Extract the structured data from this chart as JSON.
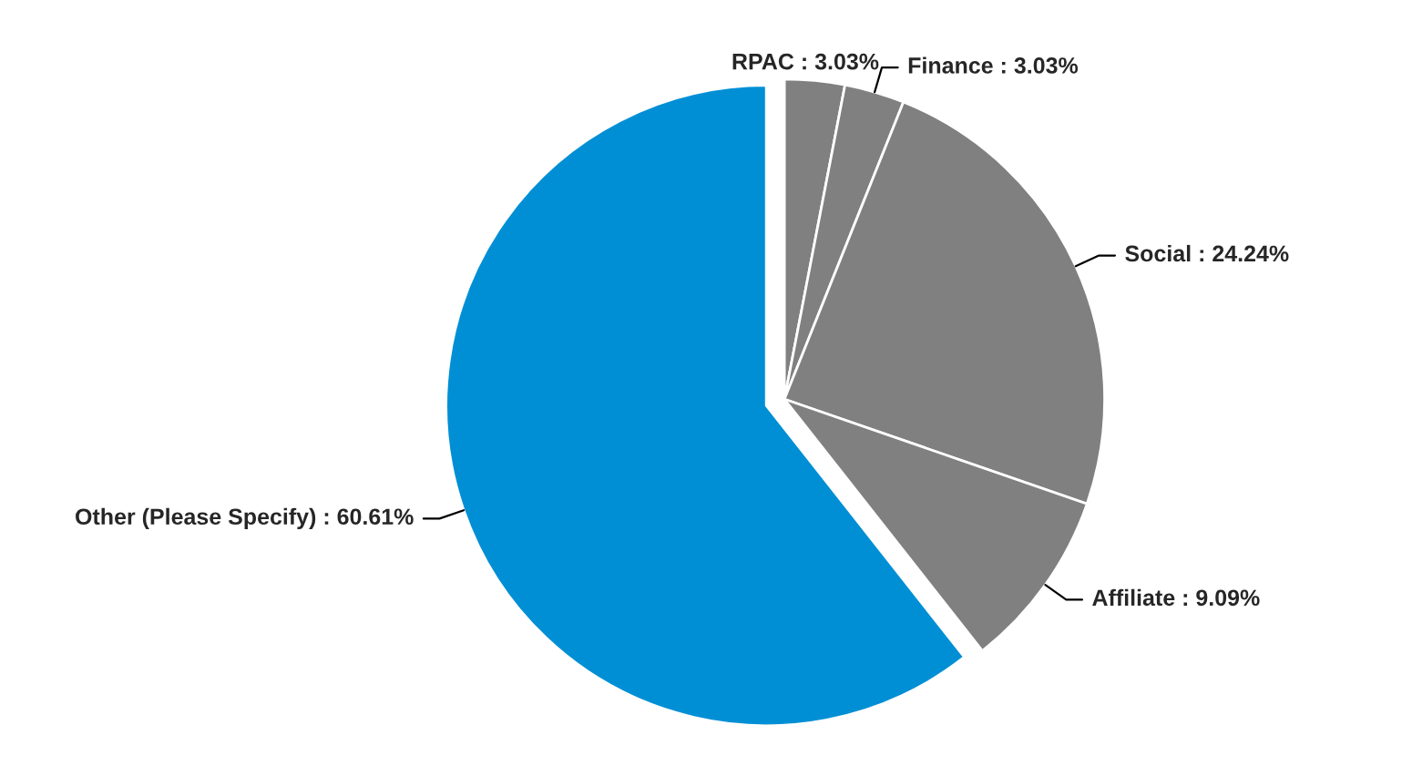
{
  "chart_data": {
    "type": "pie",
    "categories": [
      "RPAC",
      "Finance",
      "Social",
      "Affiliate",
      "Other (Please Specify)"
    ],
    "values": [
      3.03,
      3.03,
      24.24,
      9.09,
      60.61
    ],
    "value_labels": [
      "3.03%",
      "3.03%",
      "24.24%",
      "9.09%",
      "60.61%"
    ],
    "colors": [
      "#808080",
      "#808080",
      "#808080",
      "#808080",
      "#008fd5"
    ],
    "legend": false
  }
}
